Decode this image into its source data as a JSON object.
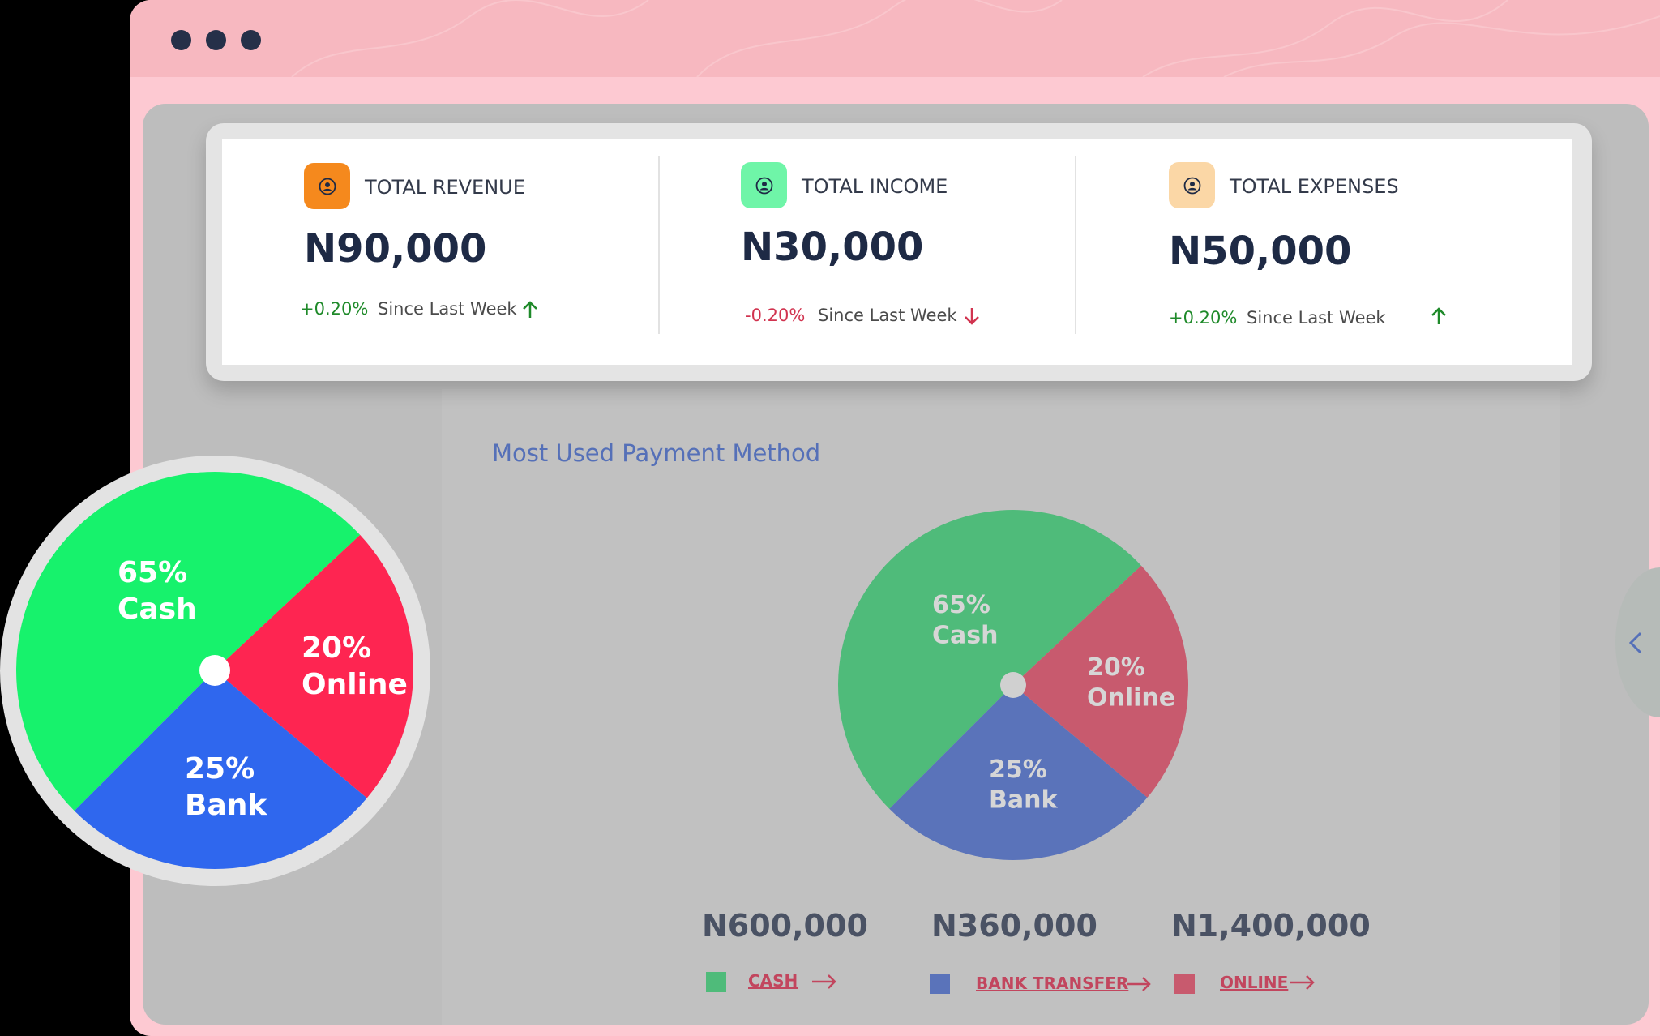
{
  "window": {
    "controls": [
      "dot",
      "dot",
      "dot"
    ]
  },
  "stats": [
    {
      "label": "TOTAL REVENUE",
      "value": "N90,000",
      "change": "+0.20%",
      "since": "Since Last Week",
      "trend": "up",
      "icon": "user-icon",
      "icon_bg": "#f5891d",
      "change_color": "#1f8a2a"
    },
    {
      "label": "TOTAL INCOME",
      "value": "N30,000",
      "change": "-0.20%",
      "since": "Since Last Week",
      "trend": "down",
      "icon": "user-icon",
      "icon_bg": "#6ff5a8",
      "change_color": "#d1334f"
    },
    {
      "label": "TOTAL EXPENSES",
      "value": "N50,000",
      "change": "+0.20%",
      "since": "Since Last Week",
      "trend": "up",
      "icon": "user-icon",
      "icon_bg": "#fbd7a6",
      "change_color": "#1f8a2a"
    }
  ],
  "payments": {
    "title": "Most Used Payment Method",
    "amounts": [
      {
        "value": "N600,000",
        "legend": "CASH",
        "color": "#4fbb7a"
      },
      {
        "value": "N360,000",
        "legend": "BANK TRANSFER",
        "color": "#5a73ba"
      },
      {
        "value": "N1,400,000",
        "legend": "ONLINE",
        "color": "#c85a6e"
      }
    ]
  },
  "chart_data": {
    "type": "pie",
    "slices": [
      {
        "pct_label": "65%",
        "name": "Cash",
        "value": 65,
        "color": "#4fbb7a"
      },
      {
        "pct_label": "20%",
        "name": "Online",
        "value": 20,
        "color": "#c85a6e"
      },
      {
        "pct_label": "25%",
        "name": "Bank",
        "value": 25,
        "color": "#5a73ba"
      }
    ],
    "zoom_colors": [
      "#17f26c",
      "#fe2551",
      "#2f67ee"
    ]
  },
  "side_nav": {
    "icon": "chevron-left-icon"
  }
}
